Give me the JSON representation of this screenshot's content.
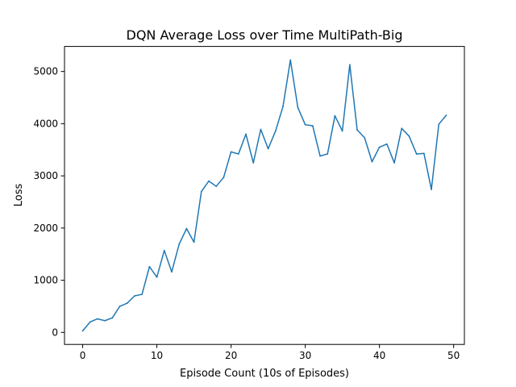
{
  "chart_data": {
    "type": "line",
    "title": "DQN Average Loss over Time MultiPath-Big",
    "xlabel": "Episode Count (10s of Episodes)",
    "ylabel": "Loss",
    "xlim": [
      -2.45,
      51.45
    ],
    "ylim": [
      -230,
      5480
    ],
    "xticks": [
      0,
      10,
      20,
      30,
      40,
      50
    ],
    "yticks": [
      0,
      1000,
      2000,
      3000,
      4000,
      5000
    ],
    "grid": false,
    "line_color": "#1f77b4",
    "series": [
      {
        "x": [
          0,
          1,
          2,
          3,
          4,
          5,
          6,
          7,
          8,
          9,
          10,
          11,
          12,
          13,
          14,
          15,
          16,
          17,
          18,
          19,
          20,
          21,
          22,
          23,
          24,
          25,
          26,
          27,
          28,
          29,
          30,
          31,
          32,
          33,
          34,
          35,
          36,
          37,
          38,
          39,
          40,
          41,
          42,
          43,
          44,
          45,
          46,
          47,
          48,
          49
        ],
        "values": [
          30,
          200,
          260,
          225,
          280,
          500,
          560,
          700,
          730,
          1260,
          1060,
          1570,
          1160,
          1690,
          1990,
          1730,
          2700,
          2900,
          2800,
          2970,
          3460,
          3420,
          3800,
          3250,
          3890,
          3520,
          3860,
          4330,
          5220,
          4310,
          3980,
          3960,
          3380,
          3420,
          4150,
          3860,
          5130,
          3880,
          3730,
          3270,
          3550,
          3610,
          3250,
          3910,
          3760,
          3420,
          3430,
          2740,
          3990,
          4160
        ]
      }
    ]
  }
}
